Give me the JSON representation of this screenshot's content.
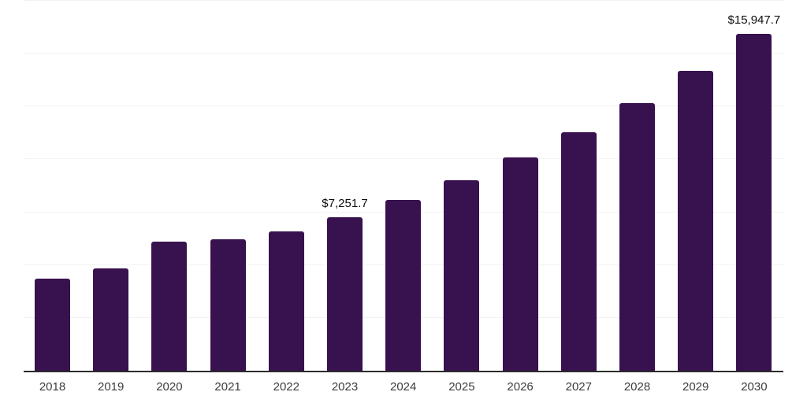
{
  "chart_data": {
    "type": "bar",
    "title": "",
    "xlabel": "",
    "ylabel": "",
    "categories": [
      "2018",
      "2019",
      "2020",
      "2021",
      "2022",
      "2023",
      "2024",
      "2025",
      "2026",
      "2027",
      "2028",
      "2029",
      "2030"
    ],
    "values": [
      4368,
      4825,
      6105,
      6217,
      6589,
      7251.7,
      8088,
      9007,
      10097,
      11287,
      12675,
      14189,
      15947.7
    ],
    "bar_labels": [
      null,
      null,
      null,
      null,
      null,
      "$7,251.7",
      null,
      null,
      null,
      null,
      null,
      null,
      "$15,947.7"
    ],
    "ylim": [
      0,
      17500
    ],
    "grid_step": 2500,
    "grid": "horizontal",
    "legend": "none",
    "y_axis_labels_visible": false
  },
  "style": {
    "bar_color": "#38114F",
    "gridline_color": "#F2F2F2",
    "axis_color": "#2B2B2B",
    "xlabel_color": "#3D3D3D",
    "value_label_color": "#0D0D0D",
    "background_color": "#FFFFFF"
  }
}
